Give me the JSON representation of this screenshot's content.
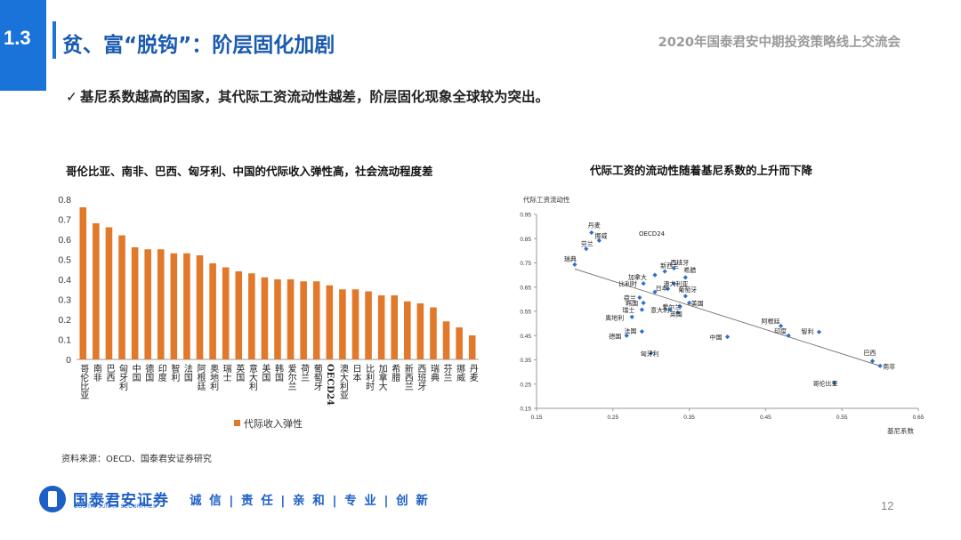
{
  "header": {
    "section_number": "1.3",
    "title": "贫、富“脱钩”：阶层固化加剧",
    "event_title": "2020年国泰君安中期投资策略线上交流会"
  },
  "bullet": {
    "check": "✓",
    "text": "基尼系数越高的国家，其代际工资流动性越差，阶层固化现象全球较为突出。"
  },
  "left_caption": "哥伦比亚、南非、巴西、匈牙利、中国的代际收入弹性高，社会流动程度差",
  "right_caption": "代际工资的流动性随着基尼系数的上升而下降",
  "source": "资料来源：OECD、国泰君安证券研究",
  "footer": {
    "company": "国泰君安证券",
    "company_en": "GUOTAI JUNAN SECURITIES",
    "motto": "诚 信 | 责 任 | 亲 和 | 专 业 | 创 新",
    "page_number": "12"
  },
  "colors": {
    "accent": "#1a73d9",
    "bar": "#e2782a",
    "point": "#2e70c9",
    "brand": "#1d5fc7"
  },
  "chart_data": [
    {
      "type": "bar",
      "categories": [
        "哥伦比亚",
        "南非",
        "巴西",
        "匈牙利",
        "中国",
        "德国",
        "印度",
        "智利",
        "法国",
        "阿根廷",
        "奥地利",
        "瑞士",
        "英国",
        "意大利",
        "美国",
        "韩国",
        "爱尔兰",
        "荷兰",
        "葡萄牙",
        "OECD24",
        "澳大利亚",
        "日本",
        "比利时",
        "加拿大",
        "希腊",
        "新西兰",
        "西班牙",
        "瑞典",
        "芬兰",
        "挪威",
        "丹麦"
      ],
      "values": [
        0.76,
        0.68,
        0.66,
        0.62,
        0.56,
        0.55,
        0.55,
        0.53,
        0.53,
        0.52,
        0.48,
        0.46,
        0.44,
        0.43,
        0.41,
        0.4,
        0.4,
        0.39,
        0.39,
        0.37,
        0.35,
        0.35,
        0.34,
        0.32,
        0.32,
        0.29,
        0.28,
        0.26,
        0.19,
        0.16,
        0.12
      ],
      "series": [
        {
          "name": "代际收入弹性"
        }
      ],
      "ylim": [
        0,
        0.8
      ],
      "yticks": [
        "0",
        "0.1",
        "0.2",
        "0.3",
        "0.4",
        "0.5",
        "0.6",
        "0.7",
        "0.8"
      ],
      "legend_position": "bottom"
    },
    {
      "type": "scatter",
      "ylabel": "代际工资流动性",
      "xlabel": "基尼系数",
      "xlim": [
        0.15,
        0.65
      ],
      "ylim": [
        0.15,
        0.95
      ],
      "xticks": [
        "0.15",
        "0.25",
        "0.35",
        "0.45",
        "0.55",
        "0.65"
      ],
      "yticks": [
        "0.15",
        "0.25",
        "0.35",
        "0.45",
        "0.55",
        "0.65",
        "0.75",
        "0.85",
        "0.95"
      ],
      "trendline": {
        "x": [
          0.2,
          0.6
        ],
        "y": [
          0.725,
          0.325
        ]
      },
      "points": [
        {
          "label": "丹麦",
          "x": 0.222,
          "y": 0.875
        },
        {
          "label": "挪威",
          "x": 0.232,
          "y": 0.842
        },
        {
          "label": "芬兰",
          "x": 0.215,
          "y": 0.808
        },
        {
          "label": "瑞典",
          "x": 0.2,
          "y": 0.743
        },
        {
          "label": "OECD24",
          "x": 0.305,
          "y": 0.63
        },
        {
          "label": "新西兰",
          "x": 0.318,
          "y": 0.715
        },
        {
          "label": "西班牙",
          "x": 0.33,
          "y": 0.728
        },
        {
          "label": "希腊",
          "x": 0.345,
          "y": 0.69
        },
        {
          "label": "加拿大",
          "x": 0.305,
          "y": 0.7
        },
        {
          "label": "比利时",
          "x": 0.29,
          "y": 0.665
        },
        {
          "label": "澳大利亚",
          "x": 0.33,
          "y": 0.665
        },
        {
          "label": "日本",
          "x": 0.322,
          "y": 0.643
        },
        {
          "label": "葡萄牙",
          "x": 0.345,
          "y": 0.613
        },
        {
          "label": "荷兰",
          "x": 0.285,
          "y": 0.607
        },
        {
          "label": "韩国",
          "x": 0.29,
          "y": 0.585
        },
        {
          "label": "爱尔兰",
          "x": 0.338,
          "y": 0.57
        },
        {
          "label": "美国",
          "x": 0.35,
          "y": 0.585
        },
        {
          "label": "瑞士",
          "x": 0.288,
          "y": 0.557
        },
        {
          "label": "意大利",
          "x": 0.325,
          "y": 0.557
        },
        {
          "label": "英国",
          "x": 0.335,
          "y": 0.545
        },
        {
          "label": "奥地利",
          "x": 0.275,
          "y": 0.527
        },
        {
          "label": "法国",
          "x": 0.288,
          "y": 0.467
        },
        {
          "label": "德国",
          "x": 0.268,
          "y": 0.45
        },
        {
          "label": "阿根廷",
          "x": 0.47,
          "y": 0.49
        },
        {
          "label": "印度",
          "x": 0.48,
          "y": 0.45
        },
        {
          "label": "智利",
          "x": 0.52,
          "y": 0.465
        },
        {
          "label": "中国",
          "x": 0.4,
          "y": 0.445
        },
        {
          "label": "匈牙利",
          "x": 0.3,
          "y": 0.378
        },
        {
          "label": "巴西",
          "x": 0.59,
          "y": 0.345
        },
        {
          "label": "南非",
          "x": 0.6,
          "y": 0.325
        },
        {
          "label": "哥伦比亚",
          "x": 0.54,
          "y": 0.255
        }
      ]
    }
  ]
}
